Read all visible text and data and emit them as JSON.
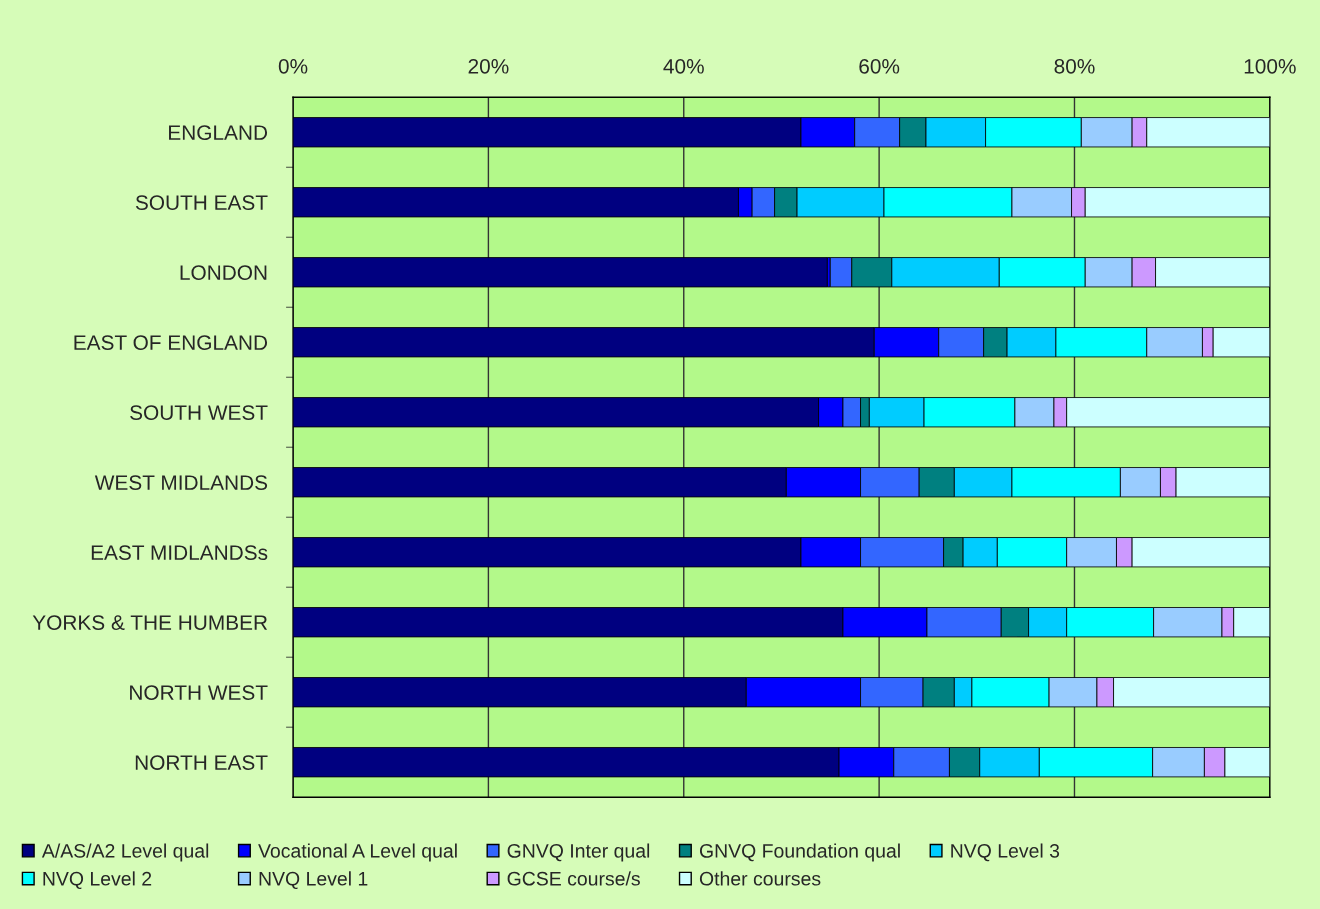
{
  "chart_data": {
    "type": "bar",
    "orientation": "horizontal",
    "stacked": true,
    "categories": [
      "ENGLAND",
      "SOUTH EAST",
      "LONDON",
      "EAST OF ENGLAND",
      "SOUTH WEST",
      "WEST MIDLANDS",
      "EAST MIDLANDSs",
      "YORKS & THE HUMBER",
      "NORTH WEST",
      "NORTH EAST"
    ],
    "series": [
      {
        "name": "A/AS/A2 Level qual",
        "color": "#000080",
        "values": [
          52.0,
          45.6,
          54.7,
          59.5,
          53.8,
          50.5,
          52.0,
          56.3,
          46.4,
          55.9
        ]
      },
      {
        "name": "Vocational A Level qual",
        "color": "#0000ff",
        "values": [
          5.5,
          1.4,
          0.3,
          6.6,
          2.5,
          7.6,
          6.1,
          8.6,
          11.7,
          5.6
        ]
      },
      {
        "name": "GNVQ Inter qual",
        "color": "#3366ff",
        "values": [
          4.6,
          2.3,
          2.2,
          4.6,
          1.8,
          6.0,
          8.5,
          7.6,
          6.4,
          5.7
        ]
      },
      {
        "name": "GNVQ Foundation qual",
        "color": "#008080",
        "values": [
          2.7,
          2.3,
          4.1,
          2.4,
          0.9,
          3.6,
          2.0,
          2.8,
          3.2,
          3.1
        ]
      },
      {
        "name": "NVQ Level 3",
        "color": "#00ccff",
        "values": [
          6.1,
          8.9,
          11.0,
          5.0,
          5.6,
          5.9,
          3.5,
          3.9,
          1.8,
          6.1
        ]
      },
      {
        "name": "NVQ Level 2",
        "color": "#00ffff",
        "values": [
          9.8,
          13.1,
          8.8,
          9.3,
          9.3,
          11.1,
          7.1,
          8.9,
          7.9,
          11.6
        ]
      },
      {
        "name": "NVQ Level 1",
        "color": "#99ccff",
        "values": [
          5.2,
          6.1,
          4.8,
          5.7,
          4.0,
          4.1,
          5.1,
          7.0,
          4.9,
          5.3
        ]
      },
      {
        "name": "GCSE course/s",
        "color": "#cc99ff",
        "values": [
          1.5,
          1.4,
          2.4,
          1.1,
          1.3,
          1.6,
          1.6,
          1.2,
          1.7,
          2.1
        ]
      },
      {
        "name": "Other courses",
        "color": "#ccffff",
        "values": [
          12.6,
          18.9,
          11.7,
          5.8,
          20.8,
          9.6,
          14.1,
          3.7,
          16.0,
          4.6
        ]
      }
    ],
    "xlim": [
      0,
      100
    ],
    "xticks": [
      {
        "value": 0,
        "label": "0%"
      },
      {
        "value": 20,
        "label": "20%"
      },
      {
        "value": 40,
        "label": "40%"
      },
      {
        "value": 60,
        "label": "60%"
      },
      {
        "value": 80,
        "label": "80%"
      },
      {
        "value": 100,
        "label": "100%"
      }
    ],
    "grid": "x",
    "legend": "bottom"
  }
}
